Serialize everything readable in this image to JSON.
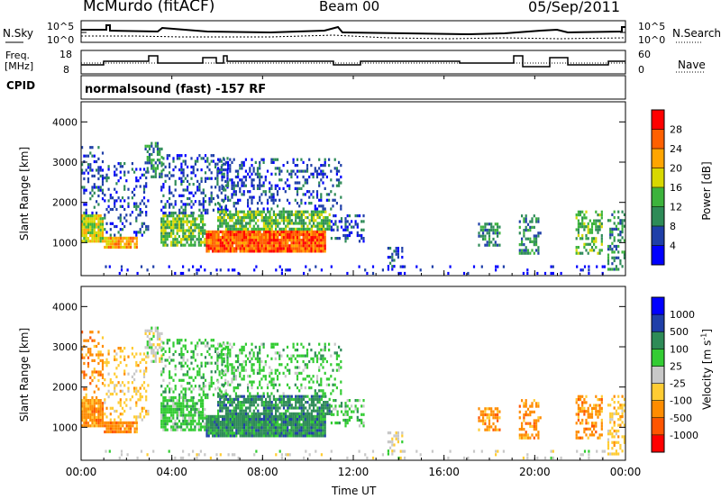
{
  "header": {
    "station": "McMurdo (fitACF)",
    "beam": "Beam 00",
    "date": "05/Sep/2011"
  },
  "noise_panel": {
    "left_label": "N.Sky",
    "right_label": "N.Search",
    "left_ticks": [
      "10^5",
      "10^0"
    ],
    "right_ticks": [
      "10^5",
      "10^0"
    ]
  },
  "freq_panel": {
    "left_label_1": "Freq.",
    "left_label_2": "[MHz]",
    "right_label": "Nave",
    "left_ticks": [
      "18",
      "8"
    ],
    "right_ticks": [
      "60",
      "0"
    ]
  },
  "cpid_panel": {
    "label": "CPID",
    "text": "normalsound (fast) -157 RF"
  },
  "colors": {
    "power": [
      "#0000ff",
      "#1f3fa8",
      "#2e8b57",
      "#3cb33c",
      "#d8d800",
      "#ffa500",
      "#ff6000",
      "#ff0000"
    ],
    "velocity": [
      "#ff0000",
      "#ff5500",
      "#ff8c00",
      "#ffcc33",
      "#c8c8c8",
      "#33cc33",
      "#2e8b57",
      "#1f3fa8",
      "#0000ff"
    ]
  },
  "chart_data": [
    {
      "type": "heatmap",
      "title": "",
      "xlabel": "",
      "ylabel": "Slant Range [km]",
      "ylim": [
        180,
        4500
      ],
      "yticks": [
        1000,
        2000,
        3000,
        4000
      ],
      "colorbar": {
        "label": "Power [dB]",
        "range": [
          0,
          32
        ],
        "ticks": [
          "4",
          "8",
          "12",
          "16",
          "20",
          "24",
          "28"
        ]
      }
    },
    {
      "type": "heatmap",
      "title": "",
      "xlabel": "Time UT",
      "ylabel": "Slant Range [km]",
      "ylim": [
        180,
        4500
      ],
      "yticks": [
        1000,
        2000,
        3000,
        4000
      ],
      "xticks": [
        "00:00",
        "04:00",
        "08:00",
        "12:00",
        "16:00",
        "20:00",
        "00:00"
      ],
      "colorbar": {
        "label": "Velocity [m s^-1]",
        "ticks": [
          "-1000",
          "-500",
          "-100",
          "-25",
          "25",
          "100",
          "500",
          "1000"
        ]
      }
    }
  ]
}
